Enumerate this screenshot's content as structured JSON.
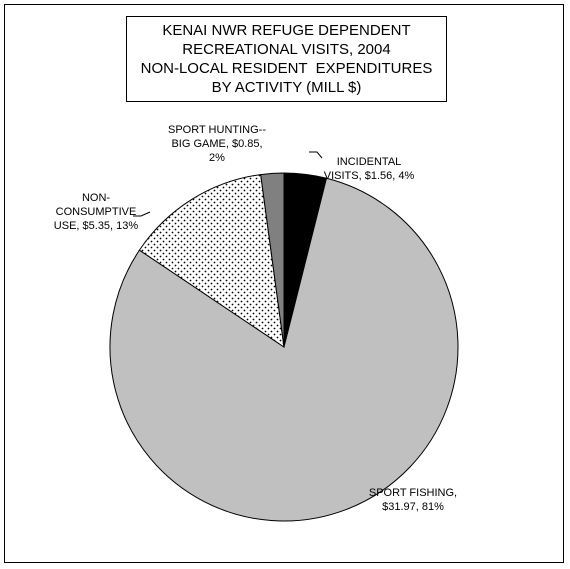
{
  "chart_data": {
    "type": "pie",
    "title_lines": [
      "KENAI NWR REFUGE DEPENDENT",
      "RECREATIONAL VISITS, 2004",
      "NON-LOCAL RESIDENT  EXPENDITURES",
      "BY ACTIVITY (MILL $)"
    ],
    "slices": [
      {
        "label_lines": [
          "INCIDENTAL",
          "VISITS, $1.56, 4%"
        ],
        "value": 1.56,
        "percent": 4,
        "fill": "#000000",
        "pattern": "solid"
      },
      {
        "label_lines": [
          "SPORT FISHING,",
          "$31.97, 81%"
        ],
        "value": 31.97,
        "percent": 81,
        "fill": "#c0c0c0",
        "pattern": "solid"
      },
      {
        "label_lines": [
          "NON-",
          "CONSUMPTIVE",
          "USE, $5.35, 13%"
        ],
        "value": 5.35,
        "percent": 13,
        "fill": "#ffffff",
        "pattern": "dots"
      },
      {
        "label_lines": [
          "SPORT HUNTING--",
          "BIG GAME, $0.85,",
          "2%"
        ],
        "value": 0.85,
        "percent": 2,
        "fill": "#808080",
        "pattern": "solid"
      }
    ]
  }
}
